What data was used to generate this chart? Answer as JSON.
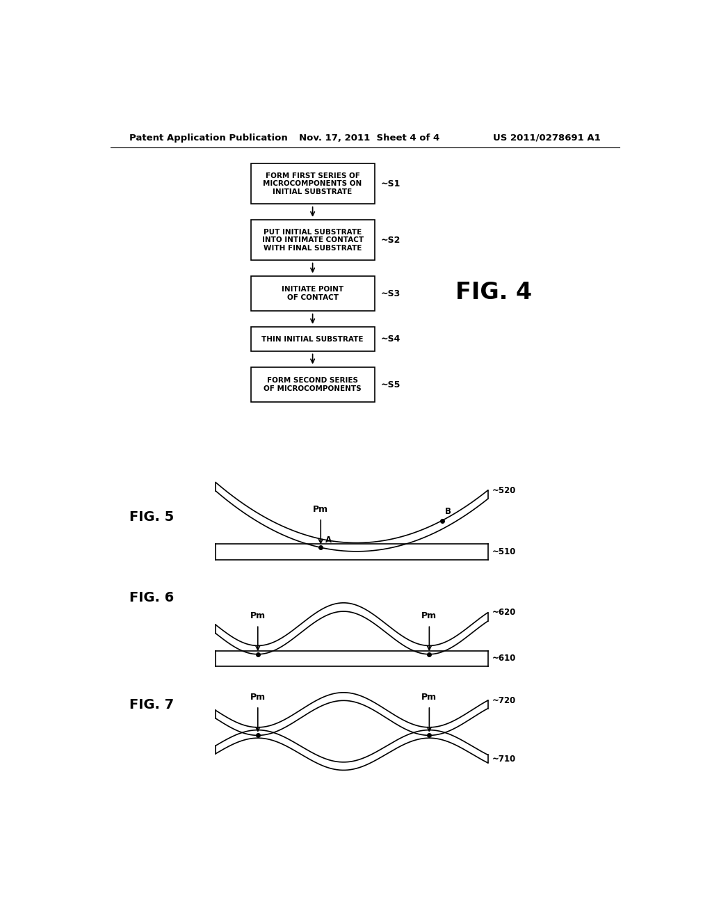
{
  "header_left": "Patent Application Publication",
  "header_mid": "Nov. 17, 2011  Sheet 4 of 4",
  "header_right": "US 2011/0278691 A1",
  "flowchart_steps": [
    {
      "label": "FORM FIRST SERIES OF\nMICROCOMPONENTS ON\nINITIAL SUBSTRATE",
      "step": "S1"
    },
    {
      "label": "PUT INITIAL SUBSTRATE\nINTO INTIMATE CONTACT\nWITH FINAL SUBSTRATE",
      "step": "S2"
    },
    {
      "label": "INITIATE POINT\nOF CONTACT",
      "step": "S3"
    },
    {
      "label": "THIN INITIAL SUBSTRATE",
      "step": "S4"
    },
    {
      "label": "FORM SECOND SERIES\nOF MICROCOMPONENTS",
      "step": "S5"
    }
  ],
  "fig4_label": "FIG. 4",
  "fig5_label": "FIG. 5",
  "fig6_label": "FIG. 6",
  "fig7_label": "FIG. 7",
  "background_color": "#ffffff"
}
